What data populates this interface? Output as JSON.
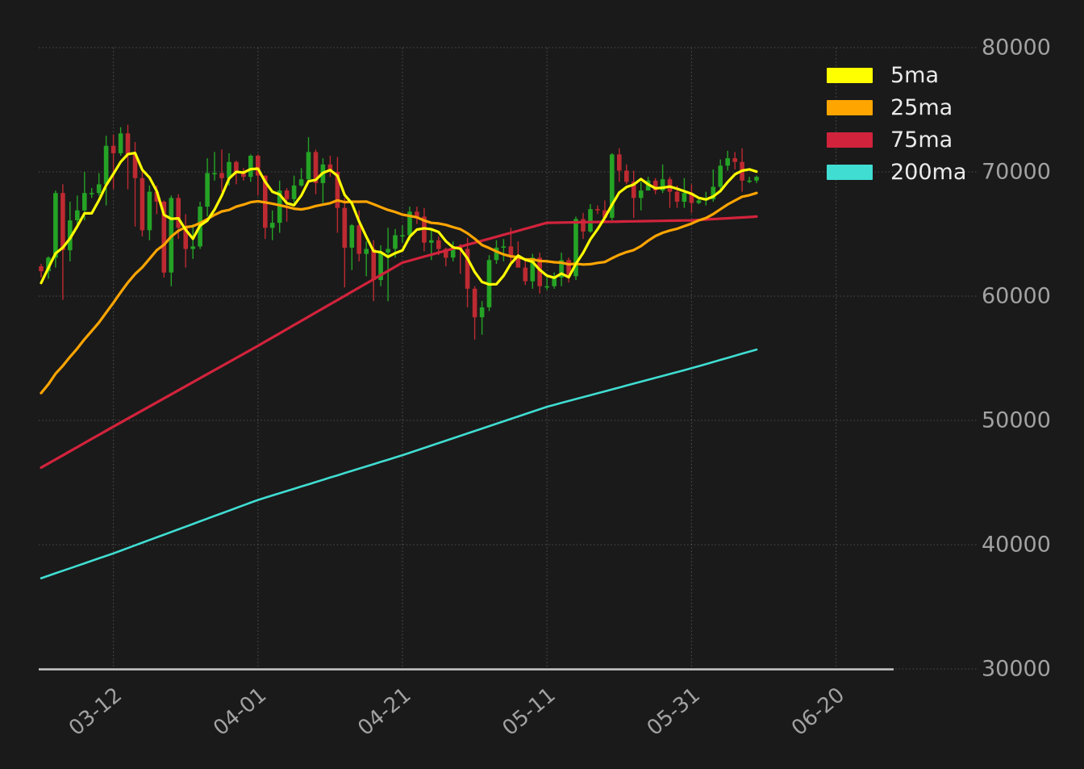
{
  "colors": {
    "background": "#1a1a1a",
    "grid": "#9a9a9a",
    "axis_line": "#c9c9c9",
    "tick_label": "#a2a2a2",
    "legend_text": "#eaeaea",
    "candle_up": "#25a325",
    "candle_down": "#bd2a31"
  },
  "chart_data": {
    "type": "candlestick",
    "title": "",
    "grid": true,
    "legend_position": "upper-right",
    "y_ticks": [
      30000,
      40000,
      50000,
      60000,
      70000,
      80000
    ],
    "ylim": [
      21950,
      83830
    ],
    "x_ticks": {
      "labels": [
        "03-12",
        "04-01",
        "04-21",
        "05-11",
        "05-31",
        "06-20"
      ],
      "data_indices": [
        10,
        30,
        50,
        70,
        90,
        110
      ],
      "rotation_deg": -40
    },
    "candles": {
      "dates": [
        "03-02",
        "03-03",
        "03-04",
        "03-05",
        "03-06",
        "03-07",
        "03-08",
        "03-09",
        "03-10",
        "03-11",
        "03-12",
        "03-13",
        "03-14",
        "03-15",
        "03-16",
        "03-17",
        "03-18",
        "03-19",
        "03-20",
        "03-21",
        "03-22",
        "03-23",
        "03-24",
        "03-25",
        "03-26",
        "03-27",
        "03-28",
        "03-29",
        "03-30",
        "03-31",
        "04-01",
        "04-02",
        "04-03",
        "04-04",
        "04-05",
        "04-06",
        "04-07",
        "04-08",
        "04-09",
        "04-10",
        "04-11",
        "04-12",
        "04-13",
        "04-14",
        "04-15",
        "04-16",
        "04-17",
        "04-18",
        "04-19",
        "04-20",
        "04-21",
        "04-22",
        "04-23",
        "04-24",
        "04-25",
        "04-26",
        "04-27",
        "04-28",
        "04-29",
        "04-30",
        "05-01",
        "05-02",
        "05-03",
        "05-04",
        "05-05",
        "05-06",
        "05-07",
        "05-08",
        "05-09",
        "05-10",
        "05-11",
        "05-12",
        "05-13",
        "05-14",
        "05-15",
        "05-16",
        "05-17",
        "05-18",
        "05-19",
        "05-20",
        "05-21",
        "05-22",
        "05-23",
        "05-24",
        "05-25",
        "05-26",
        "05-27",
        "05-28",
        "05-29",
        "05-30",
        "05-31",
        "06-01",
        "06-02",
        "06-03",
        "06-04",
        "06-05",
        "06-06",
        "06-07",
        "06-08",
        "06-09"
      ],
      "ohlc": [
        [
          62400,
          62600,
          61500,
          62000
        ],
        [
          62000,
          63200,
          61400,
          63100
        ],
        [
          63100,
          68500,
          62300,
          68300
        ],
        [
          68300,
          69000,
          59700,
          63700
        ],
        [
          63700,
          67600,
          62800,
          66100
        ],
        [
          66100,
          68100,
          65600,
          66900
        ],
        [
          66900,
          70000,
          66100,
          68300
        ],
        [
          68300,
          68700,
          67900,
          68300
        ],
        [
          68300,
          69900,
          68100,
          69000
        ],
        [
          69000,
          72900,
          67300,
          72100
        ],
        [
          72100,
          73000,
          68600,
          71500
        ],
        [
          71500,
          73600,
          71300,
          73100
        ],
        [
          73100,
          73800,
          68600,
          71400
        ],
        [
          71400,
          72400,
          65600,
          69500
        ],
        [
          69500,
          70000,
          64800,
          65300
        ],
        [
          65300,
          68900,
          64500,
          68400
        ],
        [
          68400,
          68900,
          66600,
          67600
        ],
        [
          67600,
          67700,
          61500,
          61900
        ],
        [
          61900,
          68100,
          60800,
          67900
        ],
        [
          67900,
          68200,
          64600,
          65500
        ],
        [
          65500,
          66600,
          62300,
          63800
        ],
        [
          63800,
          65800,
          63000,
          64000
        ],
        [
          64000,
          67600,
          63800,
          67200
        ],
        [
          67200,
          71100,
          66400,
          69900
        ],
        [
          69900,
          71600,
          69300,
          69900
        ],
        [
          69900,
          71800,
          68400,
          69500
        ],
        [
          69500,
          71500,
          68900,
          70800
        ],
        [
          70800,
          70900,
          69000,
          69900
        ],
        [
          69900,
          70300,
          69300,
          69600
        ],
        [
          69600,
          71400,
          69200,
          71300
        ],
        [
          71300,
          71400,
          68100,
          69700
        ],
        [
          69700,
          69700,
          64600,
          65500
        ],
        [
          65500,
          66900,
          64500,
          65900
        ],
        [
          65900,
          69300,
          65100,
          68500
        ],
        [
          68500,
          68700,
          66000,
          67800
        ],
        [
          67800,
          69700,
          67500,
          68900
        ],
        [
          68900,
          70300,
          68800,
          69400
        ],
        [
          69400,
          72800,
          69100,
          71600
        ],
        [
          71600,
          71800,
          68200,
          69100
        ],
        [
          69100,
          71100,
          67500,
          70600
        ],
        [
          70600,
          71300,
          69600,
          70000
        ],
        [
          70000,
          71200,
          65100,
          67100
        ],
        [
          67100,
          67900,
          60700,
          63900
        ],
        [
          63900,
          65800,
          62100,
          65700
        ],
        [
          65700,
          66900,
          62800,
          63400
        ],
        [
          63400,
          64400,
          61600,
          63800
        ],
        [
          63800,
          64500,
          59600,
          61300
        ],
        [
          61300,
          64100,
          60800,
          63500
        ],
        [
          63500,
          65500,
          59600,
          63800
        ],
        [
          63800,
          65400,
          63100,
          64900
        ],
        [
          64900,
          65700,
          64300,
          64900
        ],
        [
          64900,
          67200,
          64500,
          66800
        ],
        [
          66800,
          67200,
          65800,
          66400
        ],
        [
          66400,
          67100,
          63600,
          64300
        ],
        [
          64300,
          65300,
          62900,
          64500
        ],
        [
          64500,
          64800,
          63300,
          63800
        ],
        [
          63800,
          63900,
          62400,
          63100
        ],
        [
          63100,
          64400,
          62800,
          63900
        ],
        [
          63900,
          64200,
          61800,
          63800
        ],
        [
          63800,
          64700,
          59100,
          60600
        ],
        [
          60600,
          60800,
          56500,
          58300
        ],
        [
          58300,
          59600,
          56900,
          59100
        ],
        [
          59100,
          63300,
          58800,
          62900
        ],
        [
          62900,
          64500,
          62600,
          63900
        ],
        [
          63900,
          64600,
          62800,
          64000
        ],
        [
          64000,
          65500,
          62700,
          63200
        ],
        [
          63200,
          64400,
          62300,
          62300
        ],
        [
          62300,
          63000,
          60900,
          61200
        ],
        [
          61200,
          63400,
          60600,
          63100
        ],
        [
          63100,
          63500,
          60200,
          60800
        ],
        [
          60800,
          61500,
          60500,
          60800
        ],
        [
          60800,
          61900,
          60600,
          61500
        ],
        [
          61500,
          63500,
          60800,
          62900
        ],
        [
          62900,
          63100,
          61100,
          61600
        ],
        [
          61600,
          66400,
          61300,
          66200
        ],
        [
          66200,
          66700,
          64600,
          65200
        ],
        [
          65200,
          67400,
          65100,
          67000
        ],
        [
          67000,
          67300,
          66600,
          66900
        ],
        [
          66900,
          67700,
          65900,
          66300
        ],
        [
          66300,
          71500,
          66100,
          71400
        ],
        [
          71400,
          71900,
          69200,
          70100
        ],
        [
          70100,
          70600,
          69000,
          69200
        ],
        [
          69200,
          70100,
          66300,
          67900
        ],
        [
          67900,
          69200,
          66900,
          68500
        ],
        [
          68500,
          69600,
          68500,
          69300
        ],
        [
          69300,
          69500,
          68200,
          68500
        ],
        [
          68500,
          70600,
          68300,
          69400
        ],
        [
          69400,
          69600,
          67100,
          68400
        ],
        [
          68400,
          68900,
          67100,
          67600
        ],
        [
          67600,
          69500,
          67100,
          68300
        ],
        [
          68300,
          69000,
          66700,
          67500
        ],
        [
          67500,
          67800,
          67400,
          67700
        ],
        [
          67700,
          68400,
          67300,
          67800
        ],
        [
          67800,
          70200,
          67600,
          68800
        ],
        [
          68800,
          71000,
          68600,
          70500
        ],
        [
          70500,
          71700,
          70100,
          71100
        ],
        [
          71100,
          71600,
          70200,
          70800
        ],
        [
          70800,
          71900,
          68400,
          69300
        ],
        [
          69300,
          69600,
          69100,
          69300
        ],
        [
          69300,
          69700,
          69100,
          69600
        ]
      ]
    },
    "series": [
      {
        "name": "5ma",
        "color": "#ffff00",
        "width": 3.2,
        "values": [
          61060,
          62280,
          63440,
          63900,
          64640,
          65620,
          66660,
          66660,
          67720,
          68920,
          69840,
          70800,
          71420,
          71520,
          70160,
          69540,
          68440,
          66540,
          66220,
          66260,
          65340,
          64620,
          65680,
          66080,
          66960,
          68100,
          69460,
          70000,
          69940,
          70220,
          70260,
          69200,
          68400,
          68180,
          67480,
          67320,
          68100,
          69240,
          69360,
          69920,
          70140,
          69680,
          68140,
          67460,
          66020,
          64780,
          63620,
          63540,
          63160,
          63460,
          63680,
          64780,
          65360,
          65460,
          65380,
          65160,
          64420,
          63920,
          63820,
          63040,
          61940,
          61140,
          60940,
          60960,
          61640,
          62620,
          63260,
          62920,
          62760,
          62120,
          61640,
          61480,
          61820,
          61520,
          62600,
          63480,
          64580,
          65380,
          66320,
          67360,
          68340,
          68780,
          68980,
          69420,
          69000,
          68680,
          68720,
          68820,
          68640,
          68440,
          68240,
          67900,
          67780,
          68020,
          68460,
          69180,
          69800,
          70100,
          70200,
          70020
        ]
      },
      {
        "name": "25ma",
        "color": "#ffa500",
        "width": 3.2,
        "values": [
          52200,
          52912,
          53760,
          54396,
          55108,
          55788,
          56532,
          57192,
          57876,
          58676,
          59468,
          60308,
          61092,
          61780,
          62320,
          63004,
          63700,
          64132,
          64800,
          65260,
          65552,
          65632,
          65884,
          66204,
          66540,
          66816,
          66936,
          67204,
          67364,
          67560,
          67636,
          67544,
          67440,
          67316,
          67188,
          67040,
          66980,
          67084,
          67256,
          67364,
          67480,
          67708,
          67568,
          67596,
          67600,
          67612,
          67396,
          67160,
          66936,
          66772,
          66556,
          66452,
          66344,
          66084,
          65896,
          65848,
          65736,
          65552,
          65392,
          65060,
          64616,
          64116,
          63868,
          63600,
          63360,
          63204,
          63140,
          62960,
          62948,
          62828,
          62808,
          62728,
          62692,
          62560,
          62612,
          62548,
          62572,
          62676,
          62748,
          63052,
          63332,
          63544,
          63708,
          64024,
          64464,
          64840,
          65100,
          65280,
          65424,
          65628,
          65836,
          66096,
          66284,
          66604,
          66992,
          67376,
          67692,
          68000,
          68124,
          68300
        ]
      },
      {
        "name": "75ma",
        "color": "#d2233c",
        "width": 3.2,
        "values": [
          46200,
          46530,
          46860,
          47190,
          47520,
          47850,
          48180,
          48510,
          48840,
          49170,
          49500,
          49825,
          50150,
          50475,
          50800,
          51125,
          51450,
          51775,
          52100,
          52425,
          52750,
          53075,
          53400,
          53725,
          54050,
          54375,
          54700,
          55025,
          55350,
          55675,
          56000,
          56335,
          56670,
          57005,
          57340,
          57675,
          58010,
          58345,
          58680,
          59015,
          59350,
          59685,
          60020,
          60355,
          60690,
          61025,
          61360,
          61695,
          62030,
          62365,
          62700,
          62860,
          63020,
          63180,
          63340,
          63500,
          63660,
          63820,
          63980,
          64140,
          64300,
          64460,
          64620,
          64780,
          64940,
          65100,
          65260,
          65420,
          65580,
          65740,
          65900,
          65910,
          65920,
          65930,
          65940,
          65950,
          65960,
          65970,
          65980,
          65990,
          66000,
          66010,
          66020,
          66030,
          66040,
          66050,
          66060,
          66070,
          66080,
          66090,
          66100,
          66133,
          66166,
          66199,
          66232,
          66265,
          66298,
          66331,
          66364,
          66400
        ]
      },
      {
        "name": "200ma",
        "color": "#40ddd2",
        "width": 2.6,
        "values": [
          37300,
          37500,
          37700,
          37900,
          38100,
          38300,
          38500,
          38700,
          38900,
          39100,
          39300,
          39515,
          39730,
          39945,
          40160,
          40375,
          40590,
          40805,
          41020,
          41235,
          41450,
          41665,
          41880,
          42095,
          42310,
          42525,
          42740,
          42955,
          43170,
          43385,
          43600,
          43780,
          43960,
          44140,
          44320,
          44500,
          44680,
          44860,
          45040,
          45220,
          45400,
          45580,
          45760,
          45940,
          46120,
          46300,
          46480,
          46660,
          46840,
          47020,
          47200,
          47395,
          47590,
          47785,
          47980,
          48175,
          48370,
          48565,
          48760,
          48955,
          49150,
          49345,
          49540,
          49735,
          49930,
          50125,
          50320,
          50515,
          50710,
          50905,
          51100,
          51255,
          51410,
          51565,
          51720,
          51875,
          52030,
          52185,
          52340,
          52495,
          52650,
          52805,
          52960,
          53115,
          53270,
          53425,
          53580,
          53735,
          53890,
          54045,
          54200,
          54367,
          54534,
          54701,
          54868,
          55035,
          55202,
          55369,
          55536,
          55700
        ]
      }
    ]
  }
}
